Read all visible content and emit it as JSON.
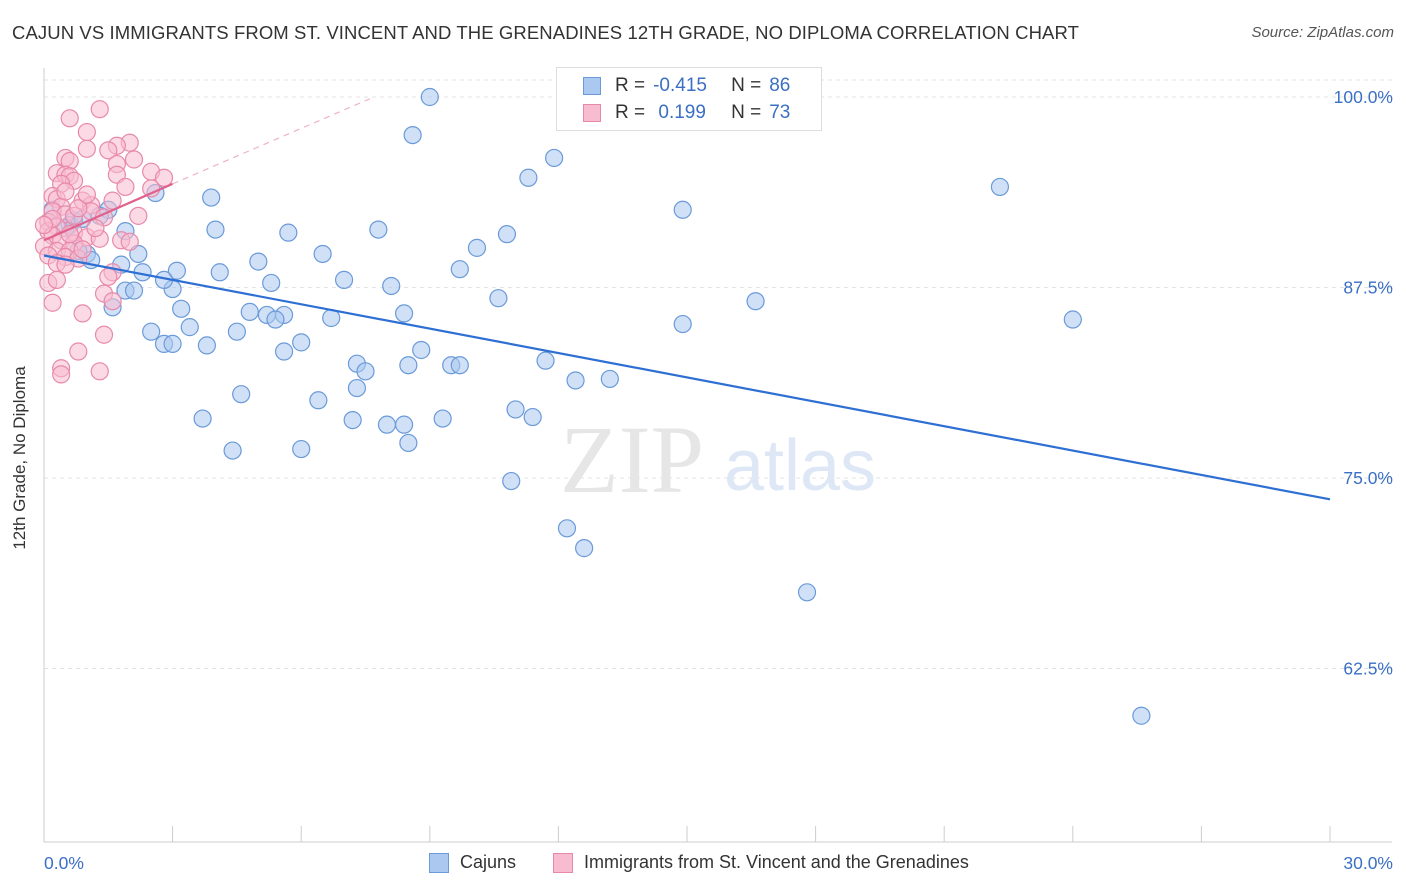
{
  "title": "CAJUN VS IMMIGRANTS FROM ST. VINCENT AND THE GRENADINES 12TH GRADE, NO DIPLOMA CORRELATION CHART",
  "source": "Source: ZipAtlas.com",
  "watermark": {
    "zip": "ZIP",
    "atlas": "atlas"
  },
  "legend_stats": [
    {
      "r_label": "R =",
      "r_value": "-0.415",
      "n_label": "N =",
      "n_value": "86",
      "color": "#aac8f0",
      "border": "#6b9ad8"
    },
    {
      "r_label": "R =",
      "r_value": " 0.199",
      "n_label": "N =",
      "n_value": "73",
      "color": "#f8bcd0",
      "border": "#e889aa"
    }
  ],
  "bottom_legend": [
    {
      "label": "Cajuns",
      "color": "#aac8f0",
      "border": "#6b9ad8"
    },
    {
      "label": "Immigrants from St. Vincent and the Grenadines",
      "color": "#f8bcd0",
      "border": "#e889aa"
    }
  ],
  "chart_data": {
    "type": "scatter",
    "xlabel": "",
    "ylabel": "12th Grade, No Diploma",
    "xlim": [
      0,
      30
    ],
    "ylim": [
      50,
      100
    ],
    "x_tick_labels": [
      "0.0%",
      "30.0%"
    ],
    "y_ticks": [
      62.5,
      75.0,
      87.5,
      100.0
    ],
    "y_tick_labels": [
      "62.5%",
      "75.0%",
      "87.5%",
      "100.0%"
    ],
    "grid": true,
    "series": [
      {
        "name": "Cajuns",
        "color": "#6b9ad8",
        "fill": "#aac8f0",
        "trend": {
          "x": [
            0.0,
            30.0
          ],
          "y": [
            89.6,
            73.6
          ],
          "color": "#2e6fd4"
        },
        "points": [
          [
            9.0,
            100.0
          ],
          [
            8.6,
            97.5
          ],
          [
            11.9,
            96.0
          ],
          [
            11.3,
            94.7
          ],
          [
            22.3,
            94.1
          ],
          [
            14.9,
            92.6
          ],
          [
            2.6,
            93.7
          ],
          [
            3.9,
            93.4
          ],
          [
            1.5,
            92.6
          ],
          [
            1.3,
            92.2
          ],
          [
            0.2,
            92.6
          ],
          [
            0.7,
            91.9
          ],
          [
            0.6,
            91.6
          ],
          [
            0.5,
            91.4
          ],
          [
            1.9,
            91.2
          ],
          [
            4.0,
            91.3
          ],
          [
            5.7,
            91.1
          ],
          [
            7.8,
            91.3
          ],
          [
            10.1,
            90.1
          ],
          [
            1.0,
            89.7
          ],
          [
            2.2,
            89.7
          ],
          [
            6.5,
            89.7
          ],
          [
            0.8,
            89.9
          ],
          [
            1.1,
            89.3
          ],
          [
            1.8,
            89.0
          ],
          [
            5.0,
            89.2
          ],
          [
            2.3,
            88.5
          ],
          [
            3.1,
            88.6
          ],
          [
            4.1,
            88.5
          ],
          [
            9.7,
            88.7
          ],
          [
            7.0,
            88.0
          ],
          [
            5.3,
            87.8
          ],
          [
            8.1,
            87.6
          ],
          [
            1.9,
            87.3
          ],
          [
            2.1,
            87.3
          ],
          [
            3.0,
            87.4
          ],
          [
            10.6,
            86.8
          ],
          [
            16.6,
            86.6
          ],
          [
            1.6,
            86.2
          ],
          [
            3.2,
            86.1
          ],
          [
            5.2,
            85.7
          ],
          [
            5.6,
            85.7
          ],
          [
            8.4,
            85.8
          ],
          [
            4.8,
            85.9
          ],
          [
            5.4,
            85.4
          ],
          [
            14.9,
            85.1
          ],
          [
            24.0,
            85.4
          ],
          [
            2.5,
            84.6
          ],
          [
            3.4,
            84.9
          ],
          [
            4.5,
            84.6
          ],
          [
            2.8,
            83.8
          ],
          [
            3.0,
            83.8
          ],
          [
            3.8,
            83.7
          ],
          [
            6.0,
            83.9
          ],
          [
            5.6,
            83.3
          ],
          [
            8.8,
            83.4
          ],
          [
            11.7,
            82.7
          ],
          [
            7.3,
            82.5
          ],
          [
            8.5,
            82.4
          ],
          [
            9.5,
            82.4
          ],
          [
            9.7,
            82.4
          ],
          [
            7.5,
            82.0
          ],
          [
            12.4,
            81.4
          ],
          [
            13.2,
            81.5
          ],
          [
            7.3,
            80.9
          ],
          [
            4.6,
            80.5
          ],
          [
            6.4,
            80.1
          ],
          [
            11.0,
            79.5
          ],
          [
            11.4,
            79.0
          ],
          [
            3.7,
            78.9
          ],
          [
            7.2,
            78.8
          ],
          [
            9.3,
            78.9
          ],
          [
            8.0,
            78.5
          ],
          [
            8.4,
            78.5
          ],
          [
            8.5,
            77.3
          ],
          [
            4.4,
            76.8
          ],
          [
            6.0,
            76.9
          ],
          [
            10.9,
            74.8
          ],
          [
            12.2,
            71.7
          ],
          [
            12.6,
            70.4
          ],
          [
            17.8,
            67.5
          ],
          [
            25.6,
            59.4
          ],
          [
            0.9,
            92.0
          ],
          [
            2.8,
            88.0
          ],
          [
            6.7,
            85.5
          ],
          [
            10.8,
            91.0
          ]
        ]
      },
      {
        "name": "Immigrants from St. Vincent and the Grenadines",
        "color": "#e889aa",
        "fill": "#f8bcd0",
        "trend": {
          "x": [
            0.0,
            3.0
          ],
          "y": [
            90.6,
            94.3
          ],
          "color": "#e0628c",
          "dashed_extension_to": [
            7.7,
            100.0
          ]
        },
        "points": [
          [
            1.3,
            99.2
          ],
          [
            0.6,
            98.6
          ],
          [
            1.0,
            97.7
          ],
          [
            2.0,
            97.0
          ],
          [
            1.7,
            96.8
          ],
          [
            1.0,
            96.6
          ],
          [
            1.5,
            96.5
          ],
          [
            0.5,
            96.0
          ],
          [
            0.6,
            95.8
          ],
          [
            1.7,
            95.6
          ],
          [
            2.5,
            95.1
          ],
          [
            0.3,
            95.0
          ],
          [
            0.5,
            94.9
          ],
          [
            0.6,
            94.8
          ],
          [
            1.7,
            94.9
          ],
          [
            2.8,
            94.7
          ],
          [
            0.7,
            94.5
          ],
          [
            0.4,
            94.3
          ],
          [
            2.5,
            94.0
          ],
          [
            0.2,
            93.5
          ],
          [
            0.3,
            93.3
          ],
          [
            0.9,
            93.2
          ],
          [
            1.6,
            93.2
          ],
          [
            1.1,
            92.9
          ],
          [
            0.4,
            92.8
          ],
          [
            1.1,
            92.5
          ],
          [
            0.2,
            92.5
          ],
          [
            0.5,
            92.3
          ],
          [
            0.7,
            92.2
          ],
          [
            1.4,
            92.1
          ],
          [
            0.1,
            91.8
          ],
          [
            0.3,
            91.5
          ],
          [
            0.1,
            91.2
          ],
          [
            0.7,
            91.1
          ],
          [
            0.2,
            90.9
          ],
          [
            1.0,
            90.8
          ],
          [
            1.8,
            90.6
          ],
          [
            0.4,
            90.6
          ],
          [
            0.7,
            90.4
          ],
          [
            1.3,
            90.7
          ],
          [
            0.0,
            90.2
          ],
          [
            0.3,
            89.9
          ],
          [
            0.6,
            89.9
          ],
          [
            0.1,
            89.6
          ],
          [
            0.5,
            89.5
          ],
          [
            0.8,
            89.4
          ],
          [
            0.3,
            89.1
          ],
          [
            0.5,
            89.0
          ],
          [
            1.6,
            88.5
          ],
          [
            0.1,
            87.8
          ],
          [
            1.4,
            87.1
          ],
          [
            0.2,
            86.5
          ],
          [
            1.6,
            86.6
          ],
          [
            0.9,
            85.8
          ],
          [
            1.4,
            84.4
          ],
          [
            0.8,
            83.3
          ],
          [
            0.4,
            82.2
          ],
          [
            1.3,
            82.0
          ],
          [
            0.4,
            81.8
          ],
          [
            0.2,
            92.0
          ],
          [
            1.2,
            91.4
          ],
          [
            0.6,
            91.0
          ],
          [
            0.8,
            92.7
          ],
          [
            2.0,
            90.5
          ],
          [
            0.3,
            88.0
          ],
          [
            1.0,
            93.6
          ],
          [
            0.0,
            91.6
          ],
          [
            2.1,
            95.9
          ],
          [
            1.9,
            94.1
          ],
          [
            0.9,
            90.0
          ],
          [
            1.5,
            88.2
          ],
          [
            0.5,
            93.8
          ],
          [
            2.2,
            92.2
          ]
        ]
      }
    ]
  }
}
